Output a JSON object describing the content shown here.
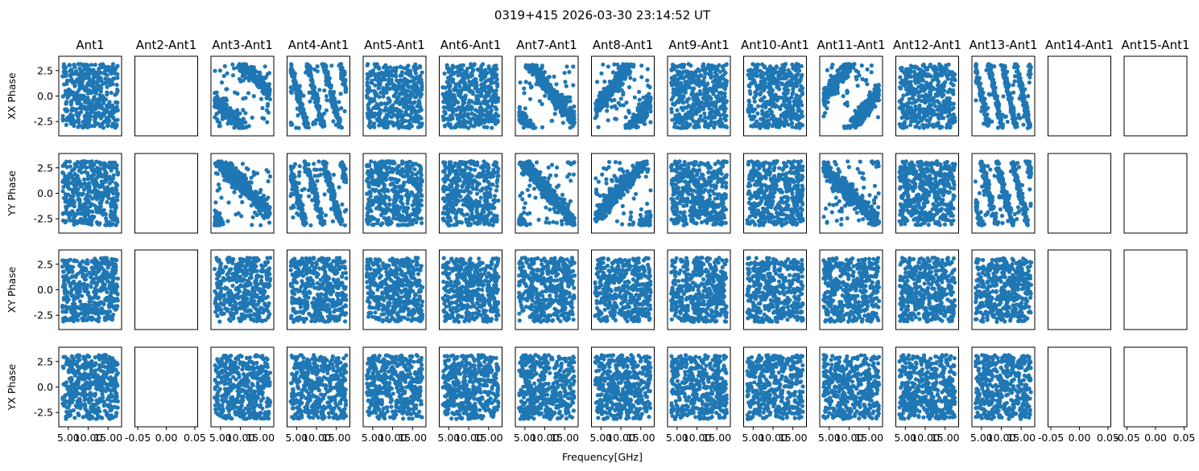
{
  "figure": {
    "title": "0319+415 2026-03-30 23:14:52 UT",
    "xlabel": "Frequency[GHz]"
  },
  "colors": {
    "marker": "#1f77b4",
    "axes": "#000000",
    "background": "#ffffff"
  },
  "chart_data": {
    "type": "scatter",
    "columns": [
      "Ant1",
      "Ant2-Ant1",
      "Ant3-Ant1",
      "Ant4-Ant1",
      "Ant5-Ant1",
      "Ant6-Ant1",
      "Ant7-Ant1",
      "Ant8-Ant1",
      "Ant9-Ant1",
      "Ant10-Ant1",
      "Ant11-Ant1",
      "Ant12-Ant1",
      "Ant13-Ant1",
      "Ant14-Ant1",
      "Ant15-Ant1"
    ],
    "rows": [
      "XX Phase",
      "YY Phase",
      "XY Phase",
      "YX Phase"
    ],
    "ylim": [
      -3.9,
      3.9
    ],
    "yticks": [
      "2.5",
      "0.0",
      "-2.5"
    ],
    "ytick_values": [
      2.5,
      0.0,
      -2.5
    ],
    "xlim_data": [
      2.6,
      18.4
    ],
    "xtick_labels_data": [
      "5.00",
      "10.00",
      "15.00"
    ],
    "xtick_values_data": [
      5,
      10,
      15
    ],
    "xlim_empty": [
      -0.055,
      0.055
    ],
    "xtick_labels_empty": [
      "-0.05",
      "0.00",
      "0.05"
    ],
    "xtick_values_empty": [
      -0.05,
      0.0,
      0.05
    ],
    "freq_range_ghz": [
      3.5,
      17.5
    ],
    "points_per_panel": 450,
    "empty_columns": [
      1,
      13,
      14
    ],
    "panel_patterns": [
      [
        "noise",
        "empty",
        "phase_slope:-0.4:1",
        "phase_slope:-1.5:2",
        "noise",
        "noise",
        "phase_slope:-0.5:0",
        "phase_slope:0.5:-3",
        "noise",
        "noise",
        "phase_slope:0.5:-2",
        "noise",
        "phase_slope:-1.8:9",
        "empty",
        "empty"
      ],
      [
        "noise",
        "empty",
        "phase_slope:-0.4:5",
        "phase_slope:-1.4:7",
        "noise",
        "noise",
        "phase_slope:-0.45:5",
        "phase_slope:0.45:-4",
        "noise",
        "noise",
        "phase_slope:-0.4:4",
        "noise",
        "phase_slope:-1.6:11",
        "empty",
        "empty"
      ],
      [
        "noise",
        "empty",
        "noise",
        "noise",
        "noise",
        "noise",
        "noise",
        "noise",
        "noise",
        "noise",
        "noise",
        "noise",
        "noise",
        "empty",
        "empty"
      ],
      [
        "noise",
        "empty",
        "noise",
        "noise",
        "noise",
        "noise",
        "noise",
        "noise",
        "noise",
        "noise",
        "noise",
        "noise",
        "noise",
        "empty",
        "empty"
      ]
    ]
  }
}
